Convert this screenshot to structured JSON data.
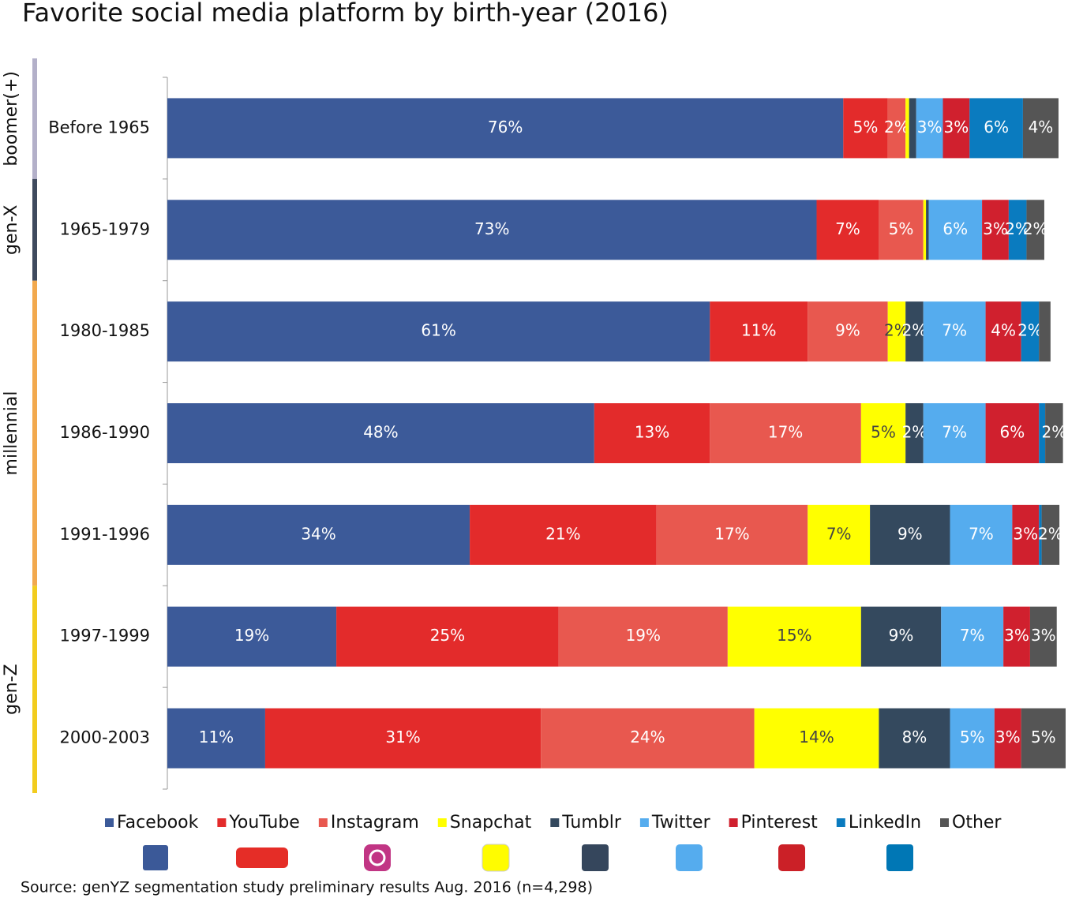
{
  "chart_data": {
    "type": "stacked-bar-horizontal",
    "title": "Favorite social media platform by birth-year (2016)",
    "source": "Source: genYZ segmentation study preliminary results Aug. 2016  (n=4,298)",
    "categories": [
      "Before 1965",
      "1965-1979",
      "1980-1985",
      "1986-1990",
      "1991-1996",
      "1997-1999",
      "2000-2003"
    ],
    "groups": [
      {
        "name": "boomer(+)",
        "color": "#b3b0c9"
      },
      {
        "name": "gen-X",
        "color": "#3f4a5e"
      },
      {
        "name": "millennial",
        "color": "#f2a94e"
      },
      {
        "name": "gen-Z",
        "color": "#f2cc1e"
      }
    ],
    "category_groups": [
      "boomer(+)",
      "gen-X",
      "millennial",
      "millennial",
      "millennial",
      "gen-Z",
      "gen-Z"
    ],
    "series": [
      {
        "name": "Facebook",
        "color": "#3c5a99",
        "values": [
          76,
          73,
          61,
          48,
          34,
          19,
          11
        ],
        "value_labels": [
          "76%",
          "73%",
          "61%",
          "48%",
          "34%",
          "19%",
          "11%"
        ]
      },
      {
        "name": "YouTube",
        "color": "#e32b2b",
        "values": [
          5,
          7,
          11,
          13,
          21,
          25,
          31
        ],
        "value_labels": [
          "5%",
          "7%",
          "11%",
          "13%",
          "21%",
          "25%",
          "31%"
        ]
      },
      {
        "name": "Instagram",
        "color": "#e8584f",
        "values": [
          2,
          5,
          9,
          17,
          17,
          19,
          24
        ],
        "value_labels": [
          "2%",
          "5%",
          "9%",
          "17%",
          "17%",
          "19%",
          "24%"
        ]
      },
      {
        "name": "Snapchat",
        "color": "#ffff00",
        "values": [
          0.4,
          0.3,
          2,
          5,
          7,
          15,
          14
        ],
        "value_labels": [
          null,
          null,
          "2%",
          "5%",
          "7%",
          "15%",
          "14%"
        ]
      },
      {
        "name": "Tumblr",
        "color": "#34495e",
        "values": [
          0.8,
          0.3,
          2,
          2,
          9,
          9,
          8
        ],
        "value_labels": [
          null,
          null,
          "2%",
          "2%",
          "9%",
          "9%",
          "8%"
        ]
      },
      {
        "name": "Twitter",
        "color": "#55acee",
        "values": [
          3,
          6,
          7,
          7,
          7,
          7,
          5
        ],
        "value_labels": [
          "3%",
          "6%",
          "7%",
          "7%",
          "7%",
          "7%",
          "5%"
        ]
      },
      {
        "name": "Pinterest",
        "color": "#d0202e",
        "values": [
          3,
          3,
          4,
          6,
          3,
          3,
          3
        ],
        "value_labels": [
          "3%",
          "3%",
          "4%",
          "6%",
          "3%",
          "3%",
          "3%"
        ]
      },
      {
        "name": "LinkedIn",
        "color": "#0a7bbf",
        "values": [
          6,
          2,
          2,
          0.7,
          0.3,
          0,
          0
        ],
        "value_labels": [
          "6%",
          "2%",
          "2%",
          null,
          null,
          null,
          null
        ]
      },
      {
        "name": "Other",
        "color": "#555555",
        "values": [
          4,
          2,
          1.3,
          2,
          2,
          3,
          5
        ],
        "value_labels": [
          "4%",
          "2%",
          null,
          "2%",
          "2%",
          "3%",
          "5%"
        ]
      }
    ]
  }
}
